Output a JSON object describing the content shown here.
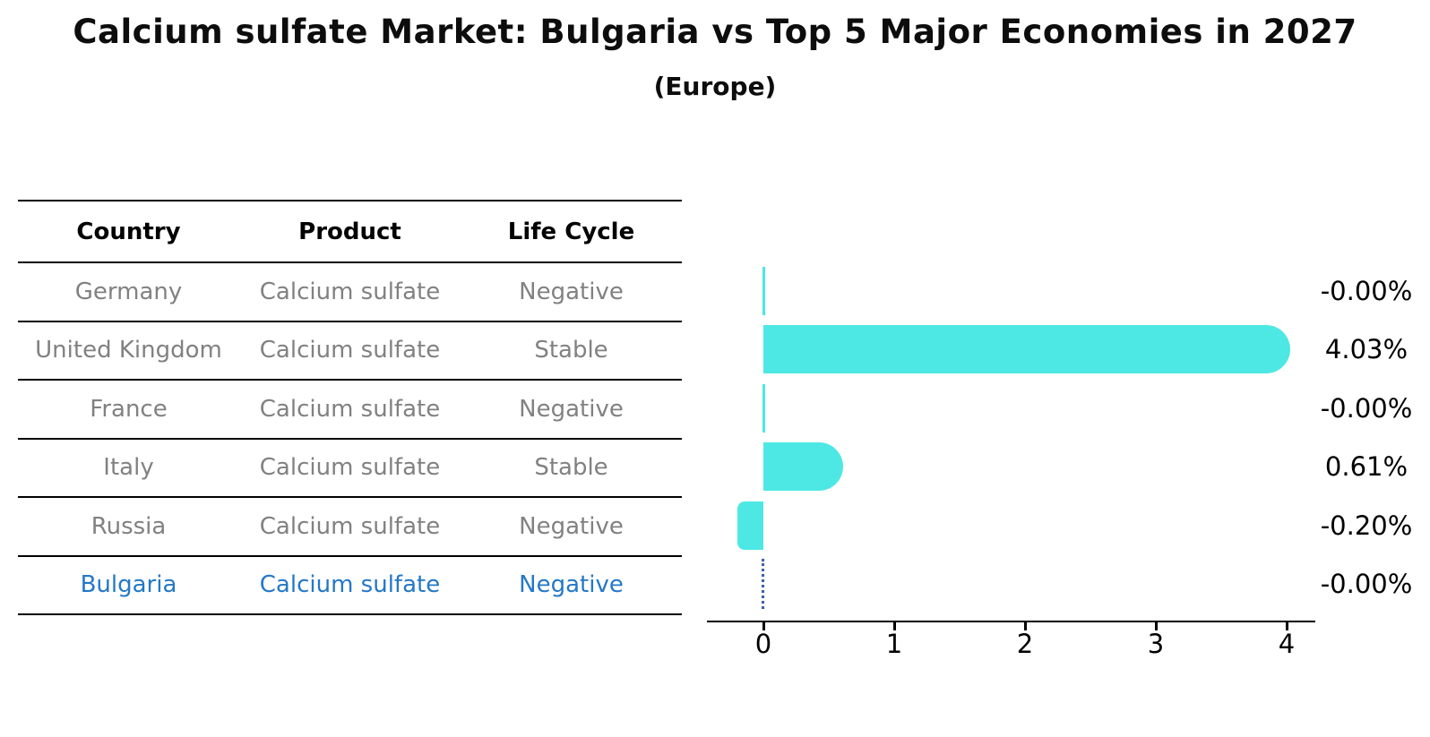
{
  "title": "Calcium sulfate Market: Bulgaria vs Top 5 Major Economies in 2027",
  "subtitle": "(Europe)",
  "table": {
    "headers": [
      "Country",
      "Product",
      "Life Cycle"
    ],
    "rows": [
      {
        "country": "Germany",
        "product": "Calcium sulfate",
        "life_cycle": "Negative"
      },
      {
        "country": "United Kingdom",
        "product": "Calcium sulfate",
        "life_cycle": "Stable"
      },
      {
        "country": "France",
        "product": "Calcium sulfate",
        "life_cycle": "Negative"
      },
      {
        "country": "Italy",
        "product": "Calcium sulfate",
        "life_cycle": "Stable"
      },
      {
        "country": "Russia",
        "product": "Calcium sulfate",
        "life_cycle": "Negative"
      },
      {
        "country": "Bulgaria",
        "product": "Calcium sulfate",
        "life_cycle": "Negative"
      }
    ],
    "highlighted_country": "Bulgaria"
  },
  "chart_data": {
    "type": "bar",
    "orientation": "horizontal",
    "categories": [
      "Germany",
      "United Kingdom",
      "France",
      "Italy",
      "Russia",
      "Bulgaria"
    ],
    "values": [
      -0.0,
      4.03,
      -0.0,
      0.61,
      -0.2,
      -0.0
    ],
    "value_labels": [
      "-0.00%",
      "4.03%",
      "-0.00%",
      "0.61%",
      "-0.20%",
      "-0.00%"
    ],
    "x_ticks": [
      "0",
      "1",
      "2",
      "3",
      "4"
    ],
    "xlim": [
      -0.43,
      4.22
    ],
    "grid": false,
    "legend": false,
    "highlight_index": 5,
    "highlight_marker": "dotted-vertical-line-at-zero"
  },
  "colors": {
    "bar": "#4de8e4",
    "highlight_line": "#3a62a8",
    "highlight_text": "#2478c8",
    "table_text": "#818181",
    "axis": "#000000",
    "title_text": "#0d0d0d"
  }
}
